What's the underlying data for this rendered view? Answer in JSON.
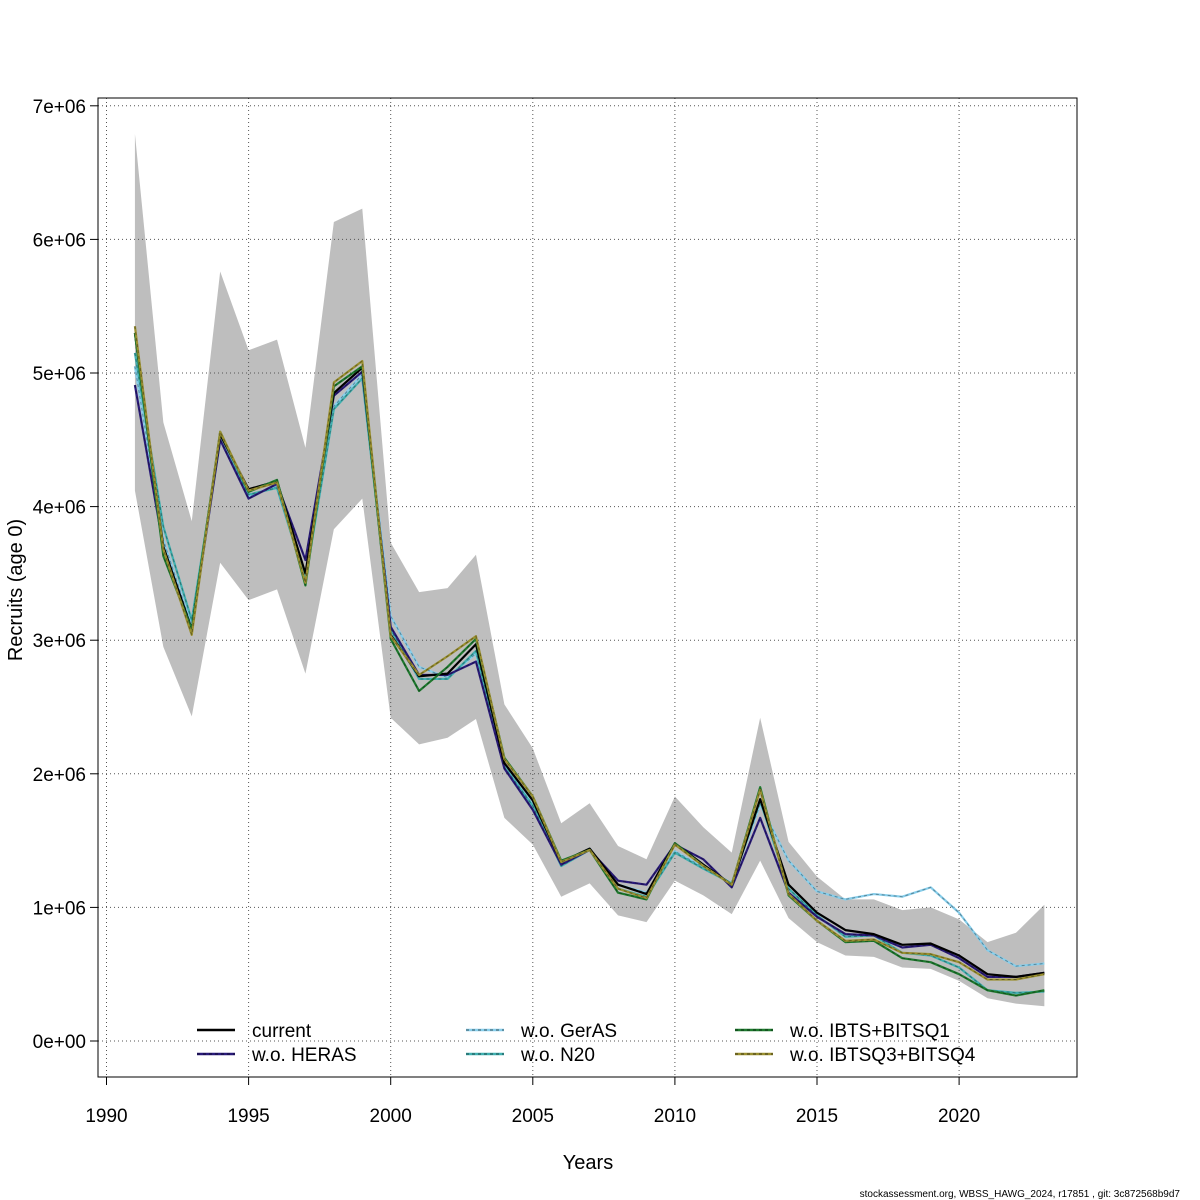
{
  "chart_data": {
    "type": "line",
    "xlabel": "Years",
    "ylabel": "Recruits (age 0)",
    "xlim": [
      1990,
      2024
    ],
    "ylim": [
      0,
      7000000
    ],
    "x_ticks": [
      1990,
      1995,
      2000,
      2005,
      2010,
      2015,
      2020
    ],
    "y_ticks": [
      0,
      1000000,
      2000000,
      3000000,
      4000000,
      5000000,
      6000000,
      7000000
    ],
    "y_tick_labels": [
      "0e+00",
      "1e+06",
      "2e+06",
      "3e+06",
      "4e+06",
      "5e+06",
      "6e+06",
      "7e+06"
    ],
    "grid": true,
    "footer": "stockassessment.org, WBSS_HAWG_2024, r17851 , git: 3c872568b9d7",
    "legend_placement": "bottom",
    "x": [
      1991,
      1992,
      1993,
      1994,
      1995,
      1996,
      1997,
      1998,
      1999,
      2000,
      2001,
      2002,
      2003,
      2004,
      2005,
      2006,
      2007,
      2008,
      2009,
      2010,
      2011,
      2012,
      2013,
      2014,
      2015,
      2016,
      2017,
      2018,
      2019,
      2020,
      2021,
      2022,
      2023
    ],
    "confidence_band": {
      "color": "#bebebe",
      "lower": [
        4120000,
        2950000,
        2430000,
        3580000,
        3300000,
        3380000,
        2750000,
        3830000,
        4060000,
        2420000,
        2220000,
        2270000,
        2410000,
        1670000,
        1470000,
        1080000,
        1180000,
        940000,
        890000,
        1200000,
        1090000,
        950000,
        1350000,
        920000,
        740000,
        640000,
        630000,
        550000,
        540000,
        450000,
        320000,
        280000,
        260000
      ],
      "upper": [
        6790000,
        4630000,
        3890000,
        5760000,
        5170000,
        5250000,
        4440000,
        6130000,
        6230000,
        3730000,
        3360000,
        3390000,
        3640000,
        2520000,
        2190000,
        1630000,
        1780000,
        1460000,
        1360000,
        1830000,
        1600000,
        1410000,
        2420000,
        1490000,
        1230000,
        1060000,
        1060000,
        980000,
        1000000,
        910000,
        740000,
        810000,
        1020000
      ]
    },
    "series": [
      {
        "name": "current",
        "color": "#000000",
        "dash": "solid",
        "values": [
          5300000,
          3700000,
          3080000,
          4540000,
          4130000,
          4190000,
          3500000,
          4850000,
          5040000,
          3040000,
          2730000,
          2750000,
          2970000,
          2080000,
          1800000,
          1340000,
          1440000,
          1170000,
          1100000,
          1480000,
          1320000,
          1170000,
          1810000,
          1170000,
          960000,
          830000,
          800000,
          720000,
          730000,
          640000,
          500000,
          480000,
          510000
        ]
      },
      {
        "name": "w.o. HERAS",
        "color": "#2a1b7a",
        "dash": "dashed",
        "values": [
          4910000,
          3700000,
          3080000,
          4500000,
          4060000,
          4170000,
          3600000,
          4830000,
          5010000,
          3100000,
          2740000,
          2740000,
          2840000,
          2040000,
          1730000,
          1320000,
          1430000,
          1200000,
          1170000,
          1470000,
          1360000,
          1150000,
          1670000,
          1110000,
          930000,
          800000,
          790000,
          700000,
          720000,
          620000,
          480000,
          480000,
          510000
        ]
      },
      {
        "name": "w.o. GerAS",
        "color": "#87ceeb",
        "dash": "dashed",
        "values": [
          5050000,
          3750000,
          3100000,
          4500000,
          4080000,
          4150000,
          3450000,
          4750000,
          4990000,
          3180000,
          2800000,
          2720000,
          2900000,
          2060000,
          1770000,
          1320000,
          1440000,
          1170000,
          1110000,
          1420000,
          1300000,
          1180000,
          1770000,
          1350000,
          1120000,
          1060000,
          1100000,
          1080000,
          1150000,
          960000,
          680000,
          560000,
          580000
        ]
      },
      {
        "name": "w.o. N20",
        "color": "#40b0b0",
        "dash": "dashed",
        "values": [
          5150000,
          3850000,
          3150000,
          4500000,
          4090000,
          4140000,
          3450000,
          4730000,
          4960000,
          3080000,
          2710000,
          2710000,
          2920000,
          2050000,
          1760000,
          1310000,
          1430000,
          1140000,
          1080000,
          1410000,
          1290000,
          1180000,
          1800000,
          1140000,
          940000,
          780000,
          790000,
          660000,
          640000,
          550000,
          380000,
          360000,
          370000
        ]
      },
      {
        "name": "w.o. IBTS+BITSQ1",
        "color": "#1e7a2e",
        "dash": "dashed",
        "values": [
          5300000,
          3630000,
          3080000,
          4560000,
          4110000,
          4200000,
          3410000,
          4900000,
          5050000,
          3010000,
          2620000,
          2800000,
          3010000,
          2120000,
          1830000,
          1350000,
          1430000,
          1110000,
          1060000,
          1480000,
          1310000,
          1170000,
          1900000,
          1090000,
          900000,
          740000,
          750000,
          620000,
          590000,
          500000,
          380000,
          340000,
          380000
        ]
      },
      {
        "name": "w.o. IBTSQ3+BITSQ4",
        "color": "#9a9030",
        "dash": "dashed",
        "values": [
          5350000,
          3680000,
          3040000,
          4560000,
          4120000,
          4180000,
          3430000,
          4930000,
          5090000,
          3030000,
          2740000,
          2880000,
          3030000,
          2110000,
          1830000,
          1340000,
          1430000,
          1140000,
          1070000,
          1470000,
          1310000,
          1170000,
          1880000,
          1100000,
          900000,
          750000,
          760000,
          660000,
          650000,
          590000,
          460000,
          460000,
          500000
        ]
      }
    ]
  }
}
